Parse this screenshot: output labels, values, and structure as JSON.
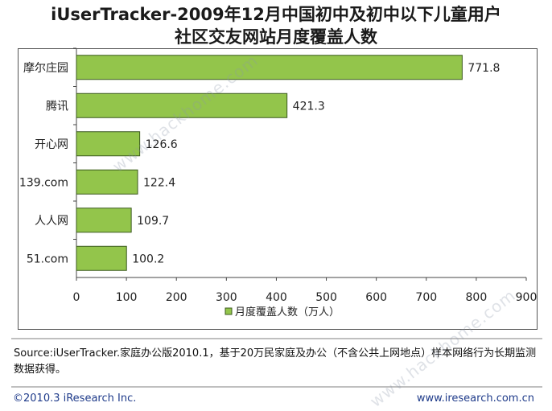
{
  "title_line1": "iUserTracker-2009年12月中国初中及初中以下儿童用户",
  "title_line2": "社区交友网站月度覆盖人数",
  "source_text": "Source:iUserTracker.家庭办公版2010.1，基于20万民家庭及办公（不含公共上网地点）样本网络行为长期监测数据获得。",
  "footer_left": "©2010.3 iResearch Inc.",
  "footer_right": "www.iresearch.com.cn",
  "watermark": "www.hackhome.com",
  "colors": {
    "bar_fill": "#93c54b",
    "bar_stroke": "#3b5a1e"
  },
  "chart_data": {
    "type": "bar",
    "orientation": "horizontal",
    "categories": [
      "摩尔庄园",
      "腾讯",
      "开心网",
      "139.com",
      "人人网",
      "51.com"
    ],
    "series": [
      {
        "name": "月度覆盖人数（万人）",
        "values": [
          771.8,
          421.3,
          126.6,
          122.4,
          109.7,
          100.2
        ]
      }
    ],
    "value_labels": [
      "771.8",
      "421.3",
      "126.6",
      "122.4",
      "109.7",
      "100.2"
    ],
    "xlim": [
      0,
      900
    ],
    "x_ticks": [
      "0",
      "100",
      "200",
      "300",
      "400",
      "500",
      "600",
      "700",
      "800",
      "900"
    ],
    "grid": false,
    "legend": "bottom-center"
  }
}
